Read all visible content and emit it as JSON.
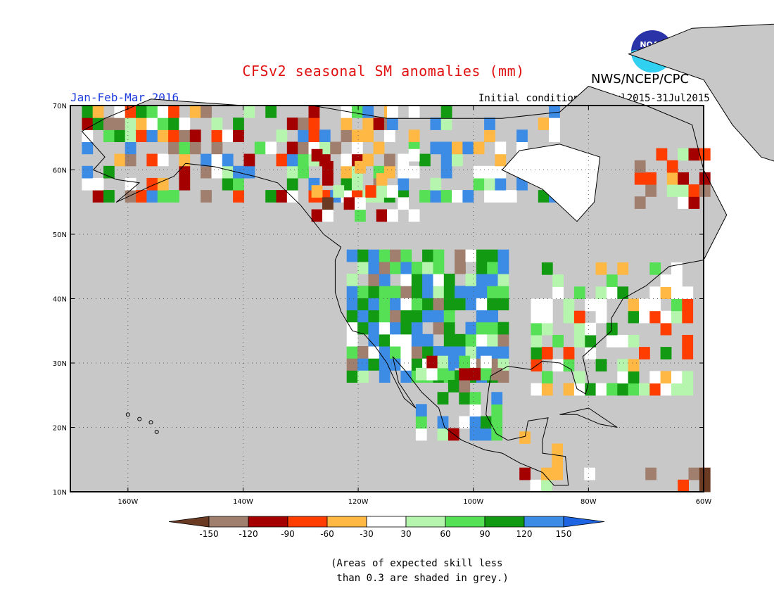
{
  "title": "CFSv2 seasonal SM anomalies (mm)",
  "agency": "NWS/NCEP/CPC",
  "season": "Jan-Feb-Mar 2016",
  "initial_conditions": "Initial conditions: 22Jul2015-31Jul2015",
  "logo_text": "NOAA",
  "axes": {
    "lat_labels": [
      "70N",
      "60N",
      "50N",
      "40N",
      "30N",
      "20N",
      "10N"
    ],
    "lon_labels": [
      "160W",
      "140W",
      "120W",
      "100W",
      "80W",
      "60W"
    ]
  },
  "colorbar": {
    "labels": [
      "-150",
      "-120",
      "-90",
      "-60",
      "-30",
      "30",
      "60",
      "90",
      "120",
      "150"
    ],
    "colors": [
      "#6b3a22",
      "#a07f6f",
      "#a40000",
      "#ff3d00",
      "#ffb844",
      "#ffffff",
      "#b6f5ae",
      "#55e055",
      "#129b12",
      "#3c8ce6",
      "#1c64e1"
    ]
  },
  "note": "(Areas of expected skill less\n than 0.3 are shaded in grey.)",
  "palette": {
    "skill_grey": "#c8c8c8",
    "title_red": "#e01010",
    "season_blue": "#1e3cdc"
  }
}
